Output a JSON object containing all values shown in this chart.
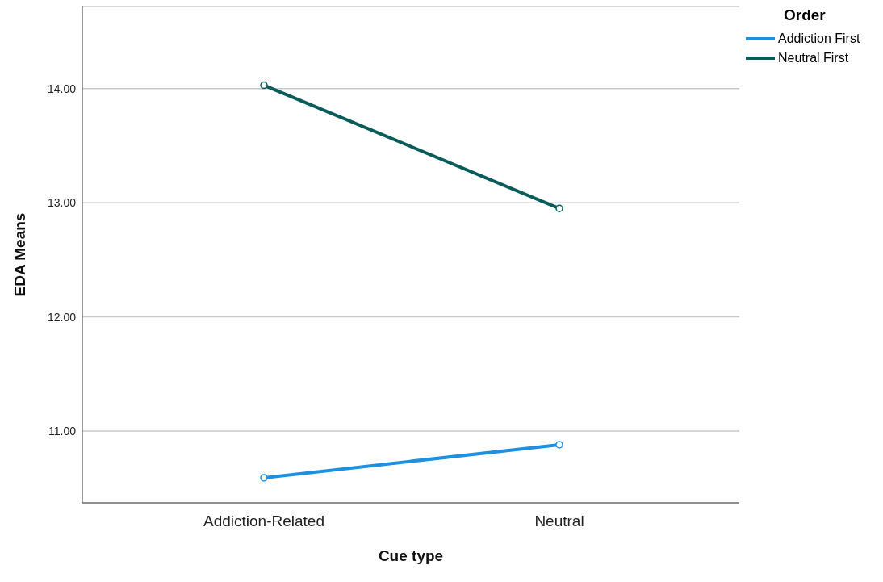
{
  "chart_data": {
    "type": "line",
    "xlabel": "Cue type",
    "ylabel": "EDA Means",
    "legend_title": "Order",
    "categories": [
      "Addiction-Related",
      "Neutral"
    ],
    "series": [
      {
        "name": "Addiction First",
        "color": "#1e90e0",
        "values": [
          10.59,
          10.88
        ]
      },
      {
        "name": "Neutral First",
        "color": "#0a5c5a",
        "values": [
          14.03,
          12.95
        ]
      }
    ],
    "ylim": [
      10.37,
      14.72
    ],
    "yticks": [
      {
        "value": 11,
        "label": "11.00"
      },
      {
        "value": 12,
        "label": "12.00"
      },
      {
        "value": 13,
        "label": "13.00"
      },
      {
        "value": 14,
        "label": "14.00"
      }
    ],
    "grid": "y",
    "legend": "top right",
    "marker": "circle",
    "line_style": "solid"
  }
}
